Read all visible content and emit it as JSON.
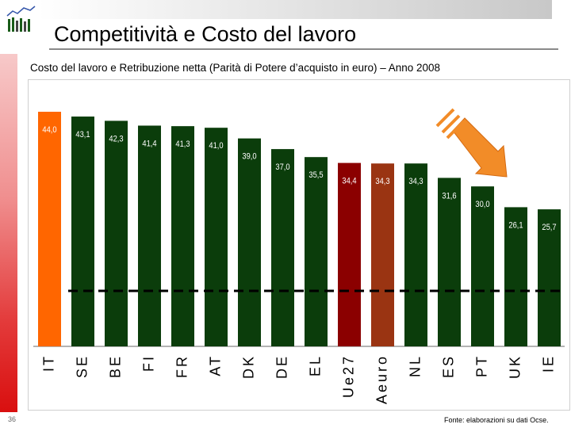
{
  "slide": {
    "title": "Competitività e Costo del lavoro",
    "page_number": "36",
    "source": "Fonte: elaborazioni su dati Ocse."
  },
  "chart_data": {
    "type": "bar",
    "title": "Costo del lavoro e Retribuzione netta (Parità di Potere d’acquisto in euro) – Anno 2008",
    "categories": [
      "IT",
      "SE",
      "BE",
      "FI",
      "FR",
      "AT",
      "DK",
      "DE",
      "EL",
      "Ue27",
      "Aeuro",
      "NL",
      "ES",
      "PT",
      "UK",
      "IE"
    ],
    "value_labels": [
      "44,0",
      "43,1",
      "42,3",
      "41,4",
      "41,3",
      "41,0",
      "39,0",
      "37,0",
      "35,5",
      "34,4",
      "34,3",
      "34,3",
      "31,6",
      "30,0",
      "26,1",
      "25,7"
    ],
    "values": [
      44.0,
      43.1,
      42.3,
      41.4,
      41.3,
      41.0,
      39.0,
      37.0,
      35.5,
      34.4,
      34.3,
      34.3,
      31.6,
      30.0,
      26.1,
      25.7
    ],
    "bar_colors": [
      "#ff6600",
      "#0b3d0b",
      "#0b3d0b",
      "#0b3d0b",
      "#0b3d0b",
      "#0b3d0b",
      "#0b3d0b",
      "#0b3d0b",
      "#0b3d0b",
      "#8b0000",
      "#9a3412",
      "#0b3d0b",
      "#0b3d0b",
      "#0b3d0b",
      "#0b3d0b",
      "#0b3d0b"
    ],
    "ylim": [
      0,
      44
    ],
    "grid": false,
    "legend": "none",
    "annotations": [
      "dashed horizontal reference line",
      "orange downward arrow over PT–UK"
    ]
  }
}
